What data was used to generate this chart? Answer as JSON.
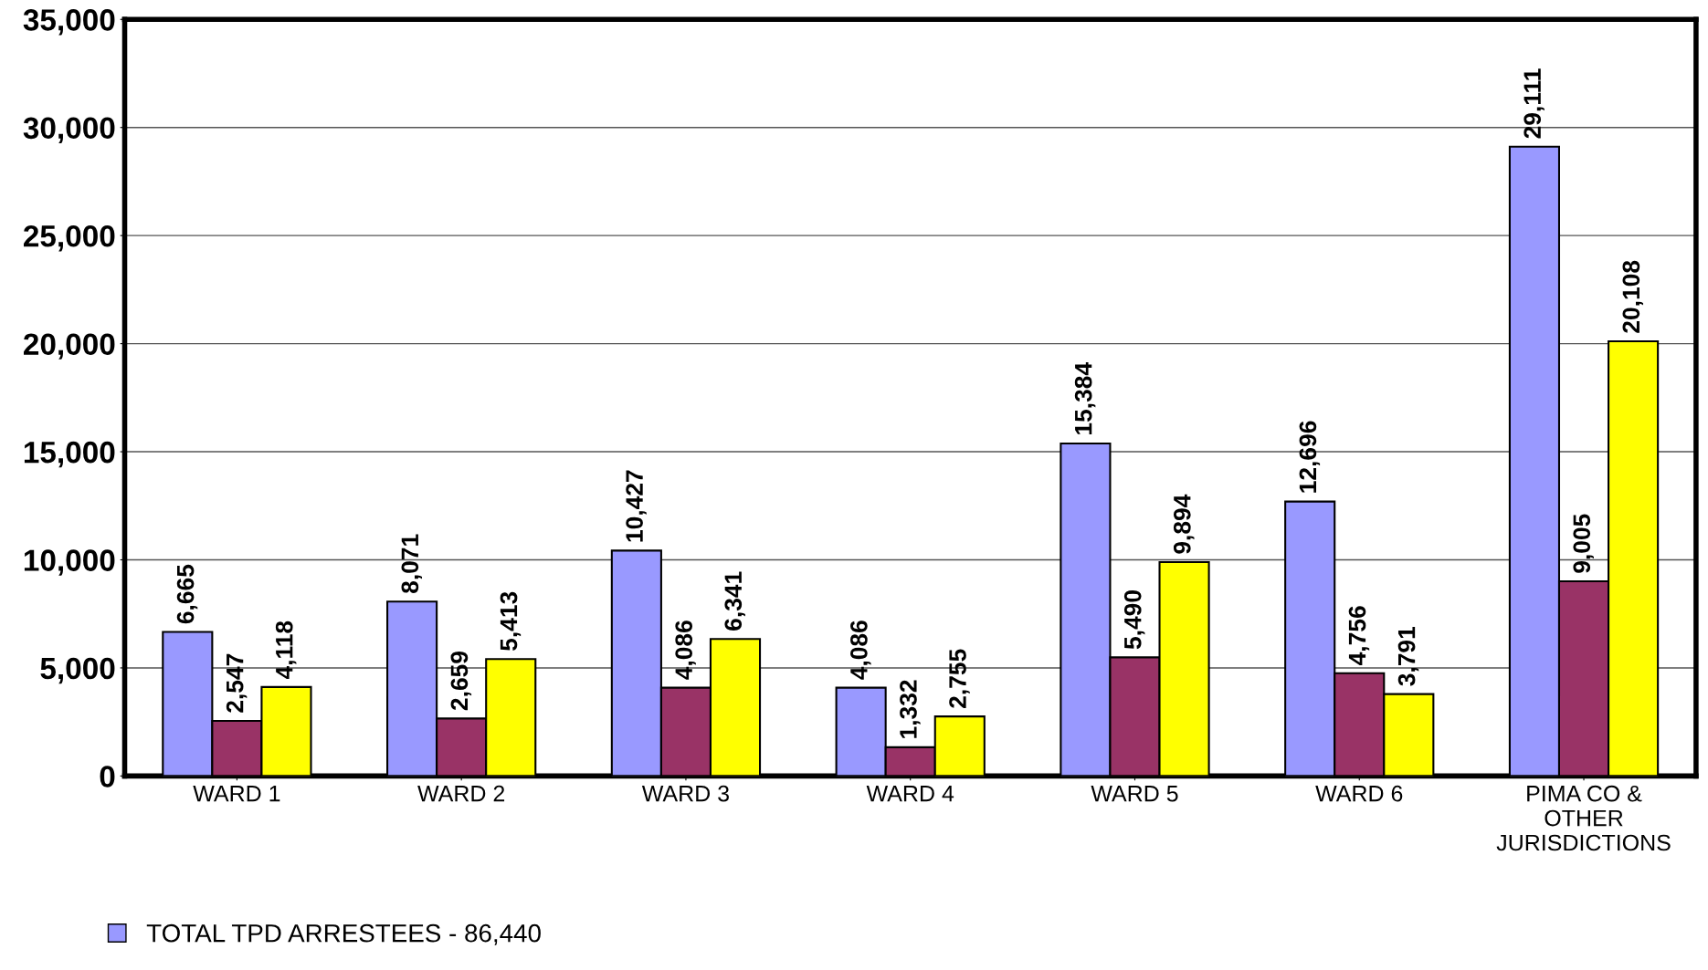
{
  "chart_data": {
    "type": "bar",
    "categories": [
      "WARD 1",
      "WARD 2",
      "WARD 3",
      "WARD 4",
      "WARD 5",
      "WARD 6",
      "PIMA CO &\nOTHER\nJURISDICTIONS"
    ],
    "series": [
      {
        "name": "TOTAL TPD ARRESTEES - 86,440",
        "color": "#9999ff",
        "values": [
          6665,
          8071,
          10427,
          4086,
          15384,
          12696,
          29111
        ],
        "value_labels": [
          "6,665",
          "8,071",
          "10,427",
          "4,086",
          "15,384",
          "12,696",
          "29,111"
        ]
      },
      {
        "color": "#993366",
        "values": [
          2547,
          2659,
          4086,
          1332,
          5490,
          4756,
          9005
        ],
        "value_labels": [
          "2,547",
          "2,659",
          "4,086",
          "1,332",
          "5,490",
          "4,756",
          "9,005"
        ]
      },
      {
        "color": "#ffff00",
        "values": [
          4118,
          5413,
          6341,
          2755,
          9894,
          3791,
          20108
        ],
        "value_labels": [
          "4,118",
          "5,413",
          "6,341",
          "2,755",
          "9,894",
          "3,791",
          "20,108"
        ]
      }
    ],
    "ylim": [
      0,
      35000
    ],
    "yticks": [
      {
        "value": 0,
        "label": "0"
      },
      {
        "value": 5000,
        "label": "5,000"
      },
      {
        "value": 10000,
        "label": "10,000"
      },
      {
        "value": 15000,
        "label": "15,000"
      },
      {
        "value": 20000,
        "label": "20,000"
      },
      {
        "value": 25000,
        "label": "25,000"
      },
      {
        "value": 30000,
        "label": "30,000"
      },
      {
        "value": 35000,
        "label": "35,000"
      }
    ],
    "grid": "y",
    "legend": "bottom left"
  }
}
